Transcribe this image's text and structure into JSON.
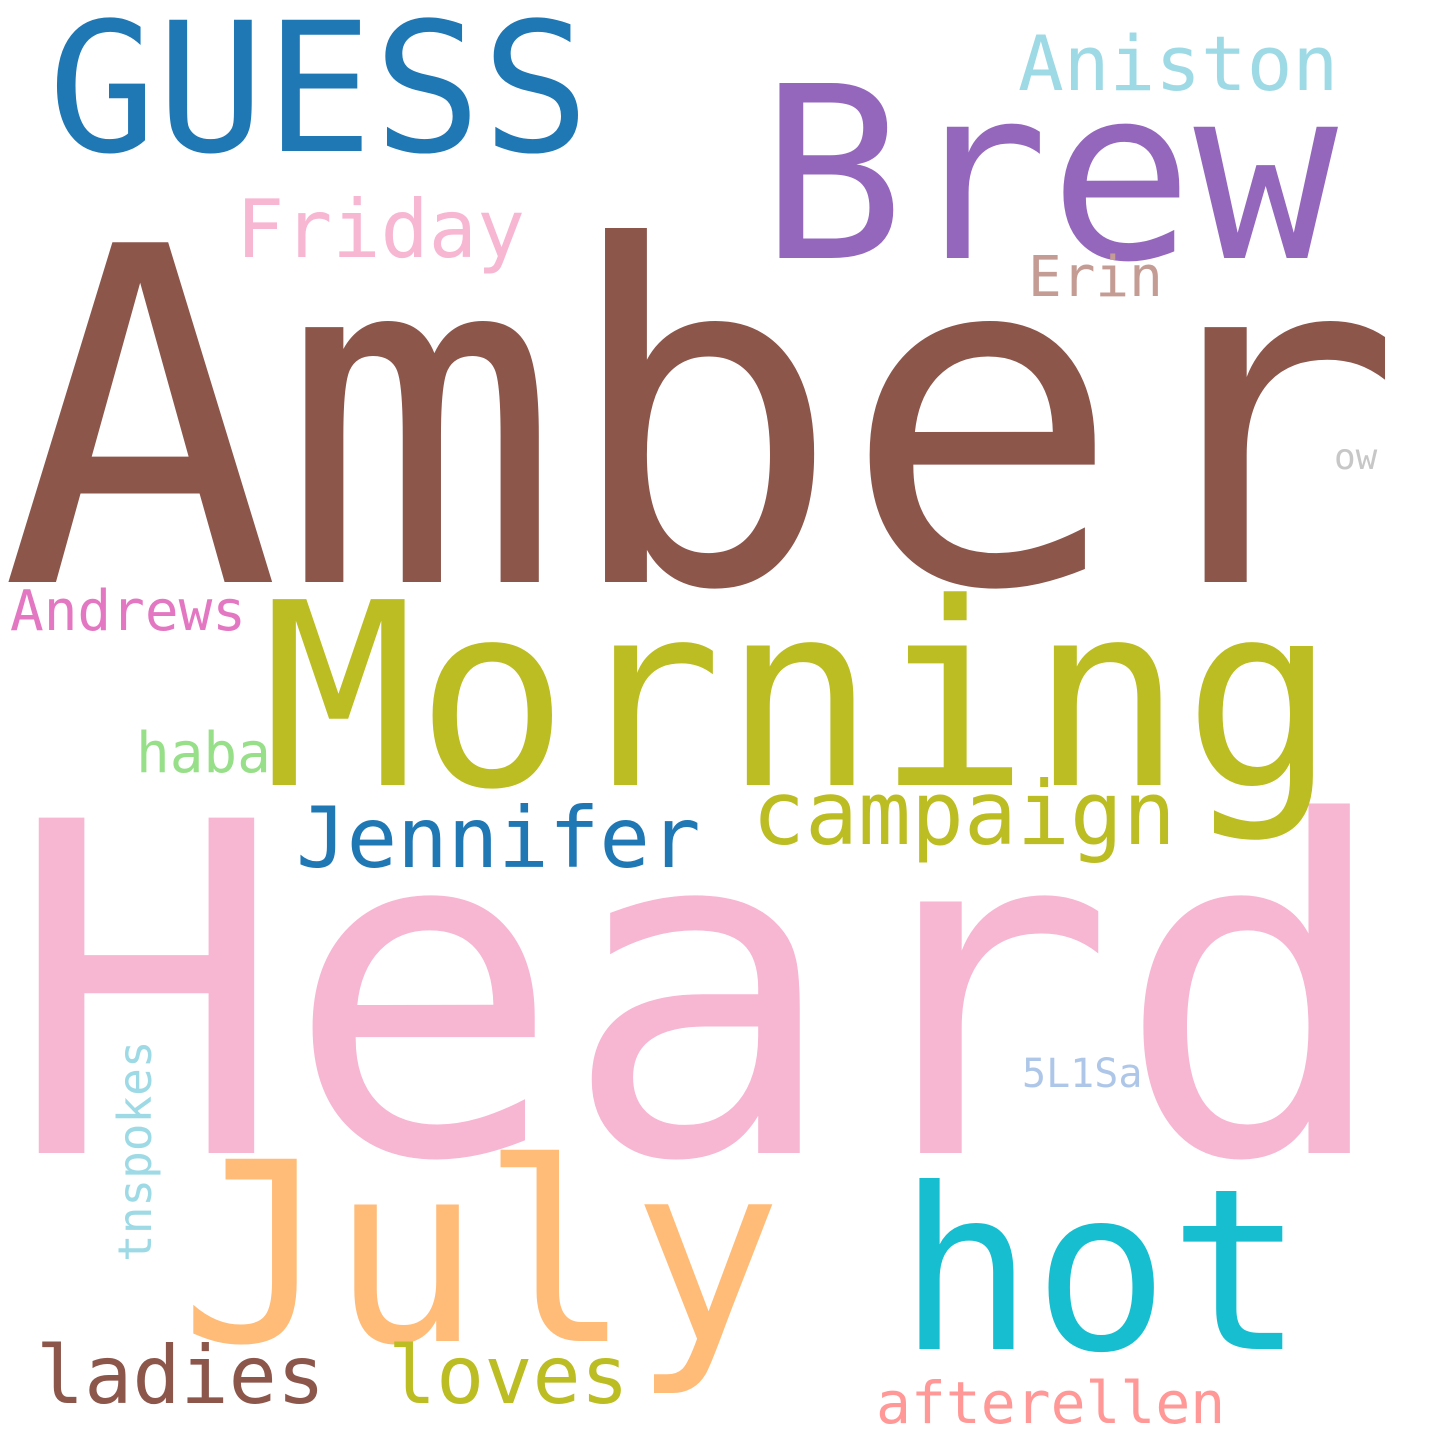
{
  "words": [
    {
      "id": "amber",
      "text": "Amber",
      "color": "#8c564b"
    },
    {
      "id": "heard",
      "text": "Heard",
      "color": "#f7b6d2"
    },
    {
      "id": "morning",
      "text": "Morning",
      "color": "#bcbd22"
    },
    {
      "id": "brew",
      "text": "Brew",
      "color": "#9467bd"
    },
    {
      "id": "guess",
      "text": "GUESS",
      "color": "#1f77b4"
    },
    {
      "id": "july",
      "text": "July",
      "color": "#ffbb78"
    },
    {
      "id": "hot",
      "text": "hot",
      "color": "#17becf"
    },
    {
      "id": "campaign",
      "text": "campaign",
      "color": "#bcbd22"
    },
    {
      "id": "jennifer",
      "text": "Jennifer",
      "color": "#1f77b4"
    },
    {
      "id": "aniston",
      "text": "Aniston",
      "color": "#9edae5"
    },
    {
      "id": "friday",
      "text": "Friday",
      "color": "#f7b6d2"
    },
    {
      "id": "erin",
      "text": "Erin",
      "color": "#c49c94"
    },
    {
      "id": "andrews",
      "text": "Andrews",
      "color": "#e377c2"
    },
    {
      "id": "haba",
      "text": "haba",
      "color": "#98df8a"
    },
    {
      "id": "ladies",
      "text": "ladies",
      "color": "#8c564b"
    },
    {
      "id": "loves",
      "text": "loves",
      "color": "#bcbd22"
    },
    {
      "id": "afterellen",
      "text": "afterellen",
      "color": "#ff9896"
    },
    {
      "id": "tnspokes",
      "text": "tnspokes",
      "color": "#9edae5"
    },
    {
      "id": "5l1sa",
      "text": "5L1Sa",
      "color": "#aec7e8"
    },
    {
      "id": "ow",
      "text": "ow",
      "color": "#c7c7c7"
    }
  ]
}
